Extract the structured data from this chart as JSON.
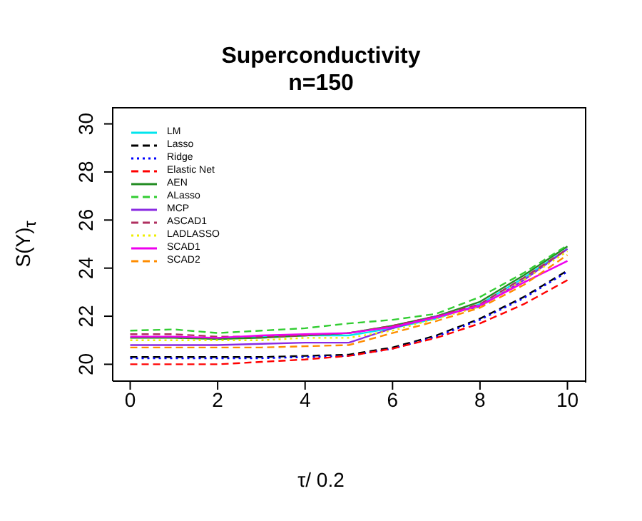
{
  "chart_data": {
    "type": "line",
    "title": "Superconductivity",
    "subtitle": "n=150",
    "xlabel": "τ/ 0.2",
    "ylabel": "S(Y)$_{τ}$",
    "x": [
      0,
      1,
      2,
      3,
      4,
      5,
      6,
      7,
      8,
      9,
      10
    ],
    "xlim": [
      -0.4,
      10.4
    ],
    "xticks": [
      0,
      2,
      4,
      6,
      8,
      10
    ],
    "ylim": [
      19.3,
      30.7
    ],
    "yticks": [
      20,
      22,
      24,
      26,
      28,
      30
    ],
    "grid": false,
    "legend": "top left",
    "series": [
      {
        "name": "LM",
        "color": "#00e5ee",
        "line_style": "solid",
        "values": [
          null,
          null,
          21.1,
          21.15,
          21.2,
          21.2,
          21.5,
          21.9,
          22.5,
          23.6,
          24.8
        ]
      },
      {
        "name": "Lasso",
        "color": "#000000",
        "line_style": "dashed",
        "values": [
          20.3,
          20.3,
          20.3,
          20.3,
          20.35,
          20.4,
          20.7,
          21.2,
          21.9,
          22.8,
          23.9
        ]
      },
      {
        "name": "Ridge",
        "color": "#0000ff",
        "line_style": "dotted",
        "values": [
          20.25,
          20.25,
          20.25,
          20.25,
          20.3,
          20.35,
          20.65,
          21.15,
          21.85,
          22.75,
          23.85
        ]
      },
      {
        "name": "Elastic Net",
        "color": "#ff0000",
        "line_style": "dashed",
        "values": [
          20.0,
          20.0,
          20.0,
          20.1,
          20.2,
          20.35,
          20.65,
          21.1,
          21.7,
          22.5,
          23.5
        ]
      },
      {
        "name": "AEN",
        "color": "#228b22",
        "line_style": "solid",
        "values": [
          21.1,
          21.1,
          21.05,
          21.1,
          21.2,
          21.3,
          21.6,
          22.0,
          22.6,
          23.7,
          24.9
        ]
      },
      {
        "name": "ALasso",
        "color": "#32cd32",
        "line_style": "dashed",
        "values": [
          21.4,
          21.45,
          21.3,
          21.4,
          21.5,
          21.7,
          21.85,
          22.1,
          22.8,
          23.8,
          24.95
        ]
      },
      {
        "name": "MCP",
        "color": "#8a2be2",
        "line_style": "solid",
        "values": [
          20.8,
          20.8,
          20.8,
          20.85,
          20.9,
          20.9,
          21.5,
          22.0,
          22.4,
          23.5,
          24.8
        ]
      },
      {
        "name": "ASCAD1",
        "color": "#b03060",
        "line_style": "dashed",
        "values": [
          21.25,
          21.25,
          21.15,
          21.15,
          21.2,
          21.3,
          21.6,
          22.0,
          22.5,
          23.6,
          24.8
        ]
      },
      {
        "name": "LADLASSO",
        "color": "#eeee00",
        "line_style": "dotted",
        "values": [
          21.0,
          21.0,
          21.0,
          21.0,
          21.1,
          21.1,
          21.4,
          21.9,
          22.4,
          23.5,
          24.7
        ]
      },
      {
        "name": "SCAD1",
        "color": "#ee00ee",
        "line_style": "solid",
        "values": [
          21.15,
          21.15,
          21.1,
          21.2,
          21.25,
          21.3,
          21.55,
          21.95,
          22.45,
          23.4,
          24.3
        ]
      },
      {
        "name": "SCAD2",
        "color": "#ff8c00",
        "line_style": "dashed",
        "values": [
          20.7,
          20.7,
          20.7,
          20.7,
          20.75,
          20.8,
          21.3,
          21.8,
          22.35,
          23.3,
          24.55
        ]
      }
    ]
  }
}
